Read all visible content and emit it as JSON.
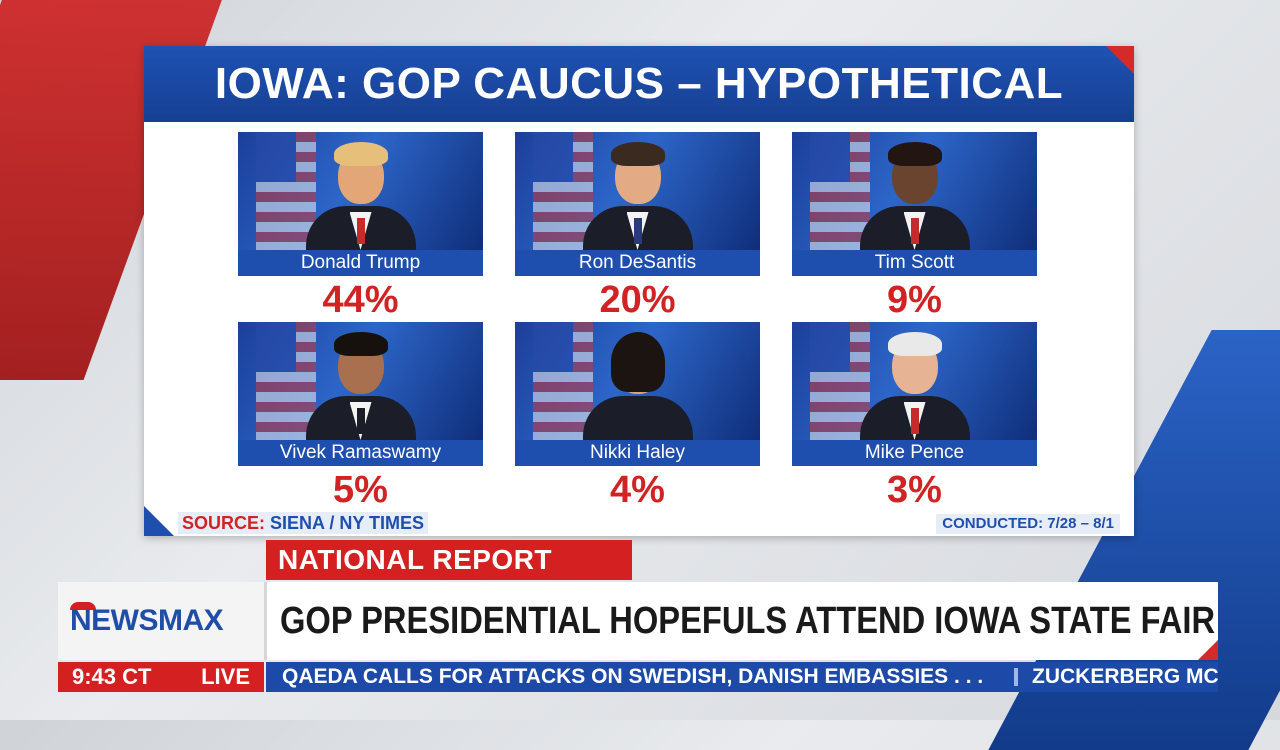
{
  "graphic": {
    "title": "IOWA: GOP CAUCUS – HYPOTHETICAL",
    "candidates": [
      {
        "name": "Donald Trump",
        "pct": "44%",
        "skin": "#e3a777",
        "hair": "#e6c07b"
      },
      {
        "name": "Ron DeSantis",
        "pct": "20%",
        "skin": "#e2ab86",
        "hair": "#3b2a20"
      },
      {
        "name": "Tim Scott",
        "pct": "9%",
        "skin": "#6b4430",
        "hair": "#231612"
      },
      {
        "name": "Vivek Ramaswamy",
        "pct": "5%",
        "skin": "#a8704f",
        "hair": "#17110e"
      },
      {
        "name": "Nikki Haley",
        "pct": "4%",
        "skin": "#d8a27a",
        "hair": "#1c1411"
      },
      {
        "name": "Mike Pence",
        "pct": "3%",
        "skin": "#e6b395",
        "hair": "#e9e9e9"
      }
    ],
    "source_label": "SOURCE:",
    "source_value": "SIENA / NY TIMES",
    "conducted": "CONDUCTED: 7/28 – 8/1"
  },
  "lower_third": {
    "section": "NATIONAL REPORT",
    "logo": "NEWSMAX",
    "headline": "GOP PRESIDENTIAL HOPEFULS ATTEND IOWA STATE FAIR",
    "time": "9:43 CT",
    "live": "LIVE",
    "ticker_1": "QAEDA CALLS FOR ATTACKS ON SWEDISH, DANISH EMBASSIES . . .",
    "ticker_2": "ZUCKERBERG MC"
  },
  "colors": {
    "brand_blue": "#1e4fae",
    "brand_red": "#d42020"
  }
}
